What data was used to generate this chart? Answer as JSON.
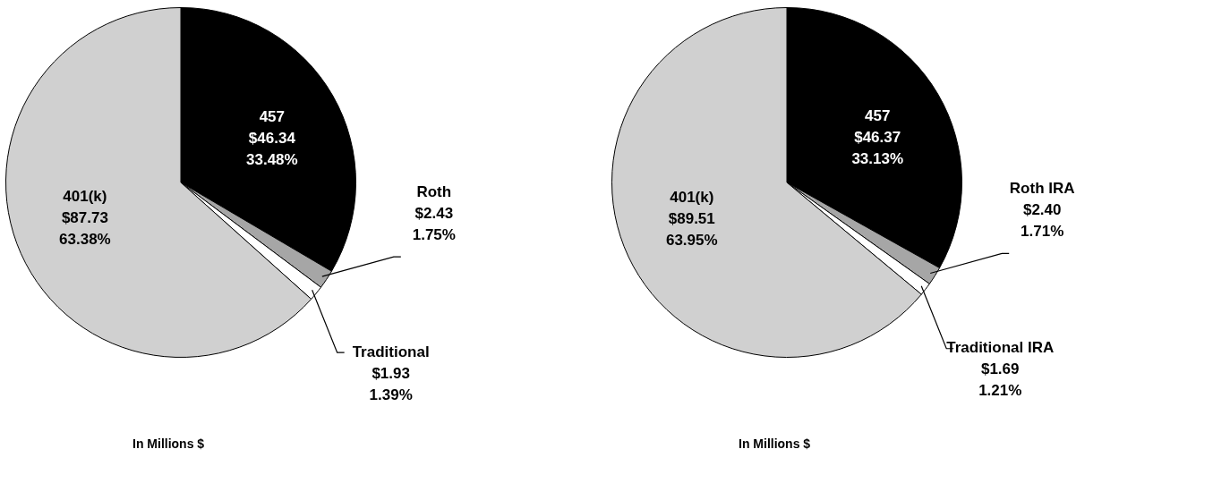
{
  "chart_data": [
    {
      "type": "pie",
      "categories": [
        "457",
        "Roth",
        "Traditional",
        "401(k)"
      ],
      "values": [
        46.34,
        2.43,
        1.93,
        87.73
      ],
      "colors": [
        "#000000",
        "#a6a6a6",
        "#ffffff",
        "#d0d0d0"
      ],
      "value_labels": [
        "$46.34\n33.48%",
        "$2.43\n1.75%",
        "$1.93\n1.39%",
        "$87.73\n63.38%"
      ],
      "annotations": [
        "In Millions $"
      ],
      "legend": false
    },
    {
      "type": "pie",
      "categories": [
        "457",
        "Roth IRA",
        "Traditional IRA",
        "401(k)"
      ],
      "values": [
        46.37,
        2.4,
        1.69,
        89.51
      ],
      "colors": [
        "#000000",
        "#a6a6a6",
        "#ffffff",
        "#d0d0d0"
      ],
      "value_labels": [
        "$46.37\n33.13%",
        "$2.40\n1.71%",
        "$1.69\n1.21%",
        "$89.51\n63.95%"
      ],
      "annotations": [
        "In Millions $"
      ],
      "legend": false
    }
  ]
}
